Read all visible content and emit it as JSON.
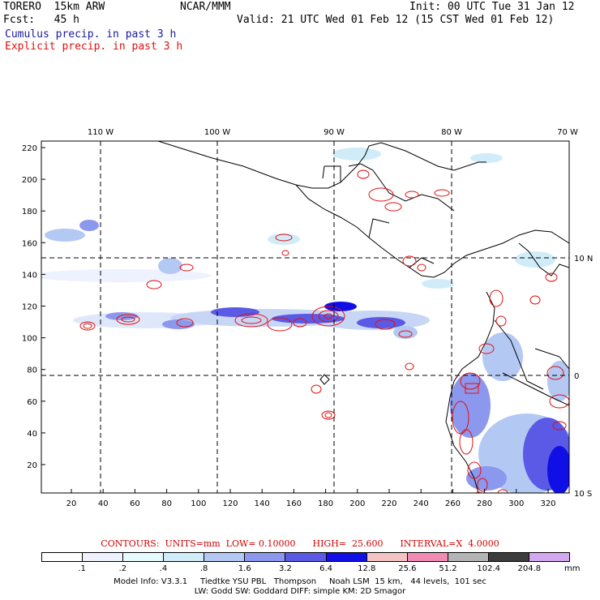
{
  "header": {
    "model": "TORERO  15km ARW",
    "center": "NCAR/MMM",
    "init": "Init: 00 UTC Tue 31 Jan 12",
    "fcst": "Fcst:   45 h",
    "valid": "Valid: 21 UTC Wed 01 Feb 12 (15 CST Wed 01 Feb 12)",
    "cumulus_label": "Cumulus precip. in past 3 h",
    "explicit_label": "Explicit precip. in past 3 h"
  },
  "colors": {
    "cumulus": "#1a1aa0",
    "explicit": "#e01010",
    "grid": "#000000",
    "coast": "#000000"
  },
  "map": {
    "lon_labels": [
      "110 W",
      "100 W",
      "90 W",
      "80 W",
      "70 W"
    ],
    "lat_labels": [
      "10 N",
      "0",
      "10 S"
    ],
    "y_ticks": [
      "220",
      "200",
      "180",
      "160",
      "140",
      "120",
      "100",
      "80",
      "60",
      "40",
      "20"
    ],
    "x_ticks": [
      "20",
      "40",
      "60",
      "80",
      "100",
      "120",
      "140",
      "160",
      "180",
      "200",
      "220",
      "240",
      "260",
      "280",
      "300",
      "320"
    ]
  },
  "contours": {
    "text": "CONTOURS:  UNITS=mm  LOW= 0.10000      HIGH=  25.600      INTERVAL=X  4.0000"
  },
  "colorbar": {
    "colors": [
      "#ffffff",
      "#eef2ff",
      "#e6fbff",
      "#d0ecf8",
      "#b4c8f4",
      "#8c98ee",
      "#5a5ae6",
      "#1010e6",
      "#f4c4c4",
      "#f08cb4",
      "#b4b4b4",
      "#3c3c3c",
      "#d4a8f0"
    ],
    "labels": [
      ".1",
      ".2",
      ".4",
      ".8",
      "1.6",
      "3.2",
      "6.4",
      "12.8",
      "25.6",
      "51.2",
      "102.4",
      "204.8"
    ],
    "unit": "mm"
  },
  "footer": {
    "line1": "Model Info: V3.3.1     Tiedtke YSU PBL   Thompson     Noah LSM  15 km,   44 levels,  101 sec",
    "line2": "LW: Godd SW: Goddard DIFF: simple KM: 2D Smagor"
  }
}
